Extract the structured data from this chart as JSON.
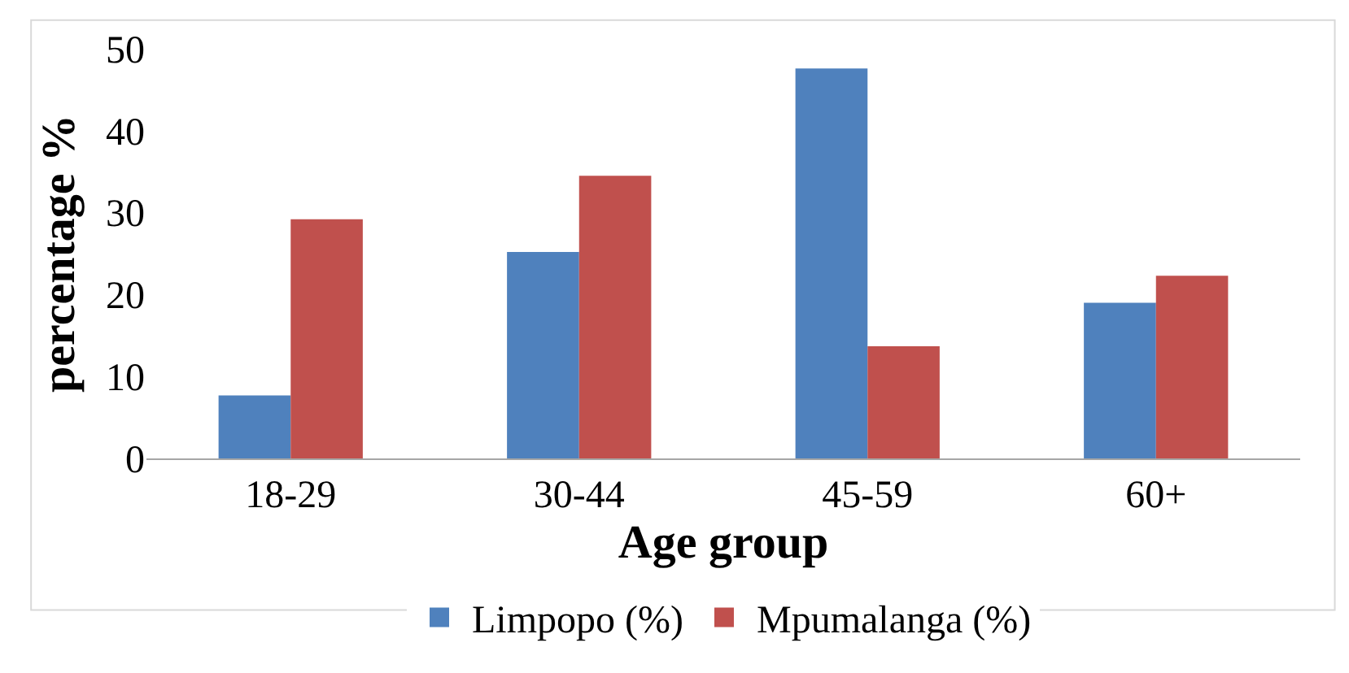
{
  "chart_data": {
    "type": "bar",
    "xlabel": "Age group",
    "ylabel": "percentage %",
    "categories": [
      "18-29",
      "30-44",
      "45-59",
      "60+"
    ],
    "series": [
      {
        "name": "Limpopo (%)",
        "color": "#4f81bd",
        "values": [
          7.7,
          25.2,
          47.6,
          19.0
        ]
      },
      {
        "name": "Mpumalanga (%)",
        "color": "#c0504d",
        "values": [
          29.2,
          34.5,
          13.7,
          22.3
        ]
      }
    ],
    "ylim": [
      0,
      50
    ],
    "yticks": [
      0,
      10,
      20,
      30,
      40,
      50
    ],
    "grid": false,
    "legend": "bottom"
  }
}
